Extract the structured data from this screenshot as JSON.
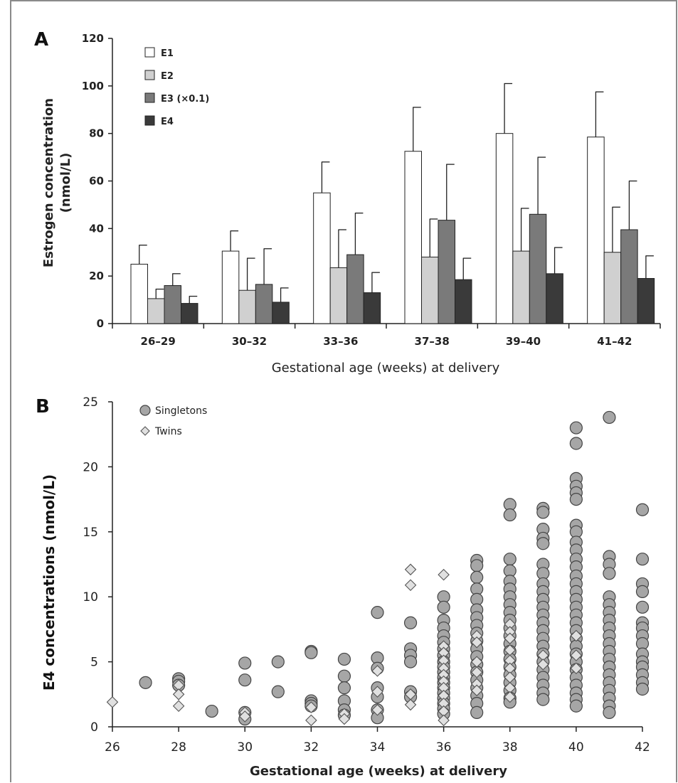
{
  "chart_data": [
    {
      "panel": "A",
      "type": "bar",
      "ylabel_line1": "Estrogen concentration",
      "ylabel_line2": "(nmol/L)",
      "xlabel": "Gestational age (weeks) at delivery",
      "ylim": [
        0,
        120
      ],
      "yticks": [
        0,
        20,
        40,
        60,
        80,
        100,
        120
      ],
      "categories": [
        "26–29",
        "30–32",
        "33–36",
        "37–38",
        "39–40",
        "41–42"
      ],
      "legend_position": "top-left",
      "series": [
        {
          "name": "E1",
          "color": "#ffffff",
          "values": [
            25,
            30.5,
            55,
            72.5,
            80,
            78.5
          ],
          "errors": [
            8,
            8.5,
            13,
            18.5,
            21,
            19
          ]
        },
        {
          "name": "E2",
          "color": "#d0d0d0",
          "values": [
            10.5,
            14,
            23.5,
            28,
            30.5,
            30
          ],
          "errors": [
            4,
            13.5,
            16,
            16,
            18,
            19
          ]
        },
        {
          "name": "E3 (×0.1)",
          "color": "#7a7a7a",
          "values": [
            16,
            16.5,
            29,
            43.5,
            46,
            39.5
          ],
          "errors": [
            5,
            15,
            17.5,
            23.5,
            24,
            20.5
          ]
        },
        {
          "name": "E4",
          "color": "#3a3a3a",
          "values": [
            8.5,
            9,
            13,
            18.5,
            21,
            19
          ],
          "errors": [
            3,
            6,
            8.5,
            9,
            11,
            9.5
          ]
        }
      ]
    },
    {
      "panel": "B",
      "type": "scatter",
      "ylabel": "E4 concentrations (nmol/L)",
      "xlabel": "Gestational age (weeks)  at delivery",
      "xlim": [
        26,
        42
      ],
      "ylim": [
        0,
        25
      ],
      "xticks": [
        26,
        28,
        30,
        32,
        34,
        36,
        38,
        40,
        42
      ],
      "yticks": [
        0,
        5,
        10,
        15,
        20,
        25
      ],
      "legend_position": "top-left",
      "series": [
        {
          "name": "Singletons",
          "marker": "circle",
          "color": "#a6a6a6",
          "points": [
            [
              27,
              3.4
            ],
            [
              28,
              3.7
            ],
            [
              28,
              3.5
            ],
            [
              28,
              3.2
            ],
            [
              29,
              1.2
            ],
            [
              30,
              4.9
            ],
            [
              30,
              3.6
            ],
            [
              30,
              1.1
            ],
            [
              30,
              0.6
            ],
            [
              31,
              5.0
            ],
            [
              31,
              2.7
            ],
            [
              32,
              5.8
            ],
            [
              32,
              5.7
            ],
            [
              32,
              2.0
            ],
            [
              32,
              1.8
            ],
            [
              32,
              1.6
            ],
            [
              33,
              5.2
            ],
            [
              33,
              3.9
            ],
            [
              33,
              3.0
            ],
            [
              33,
              2.0
            ],
            [
              33,
              1.3
            ],
            [
              33,
              0.9
            ],
            [
              34,
              8.8
            ],
            [
              34,
              5.3
            ],
            [
              34,
              4.5
            ],
            [
              34,
              3.0
            ],
            [
              34,
              2.3
            ],
            [
              34,
              1.3
            ],
            [
              34,
              0.7
            ],
            [
              35,
              8.0
            ],
            [
              35,
              6.0
            ],
            [
              35,
              5.5
            ],
            [
              35,
              5.0
            ],
            [
              35,
              2.7
            ],
            [
              35,
              2.3
            ],
            [
              36,
              10.0
            ],
            [
              36,
              9.2
            ],
            [
              36,
              8.2
            ],
            [
              36,
              7.6
            ],
            [
              36,
              7.0
            ],
            [
              36,
              6.5
            ],
            [
              36,
              6.0
            ],
            [
              36,
              5.5
            ],
            [
              36,
              5.0
            ],
            [
              36,
              4.6
            ],
            [
              36,
              4.2
            ],
            [
              36,
              3.8
            ],
            [
              36,
              3.4
            ],
            [
              36,
              3.0
            ],
            [
              36,
              2.6
            ],
            [
              36,
              2.2
            ],
            [
              36,
              1.8
            ],
            [
              36,
              1.4
            ],
            [
              36,
              1.0
            ],
            [
              37,
              12.8
            ],
            [
              37,
              12.4
            ],
            [
              37,
              11.5
            ],
            [
              37,
              10.6
            ],
            [
              37,
              9.8
            ],
            [
              37,
              9.0
            ],
            [
              37,
              8.4
            ],
            [
              37,
              7.8
            ],
            [
              37,
              7.2
            ],
            [
              37,
              6.6
            ],
            [
              37,
              6.0
            ],
            [
              37,
              5.4
            ],
            [
              37,
              4.8
            ],
            [
              37,
              4.2
            ],
            [
              37,
              3.6
            ],
            [
              37,
              3.0
            ],
            [
              37,
              2.4
            ],
            [
              37,
              1.8
            ],
            [
              37,
              1.1
            ],
            [
              38,
              17.1
            ],
            [
              38,
              16.3
            ],
            [
              38,
              12.9
            ],
            [
              38,
              12.0
            ],
            [
              38,
              11.2
            ],
            [
              38,
              10.6
            ],
            [
              38,
              10.0
            ],
            [
              38,
              9.4
            ],
            [
              38,
              8.8
            ],
            [
              38,
              8.2
            ],
            [
              38,
              7.6
            ],
            [
              38,
              7.0
            ],
            [
              38,
              6.4
            ],
            [
              38,
              5.8
            ],
            [
              38,
              5.2
            ],
            [
              38,
              4.6
            ],
            [
              38,
              4.0
            ],
            [
              38,
              3.4
            ],
            [
              38,
              2.8
            ],
            [
              38,
              2.2
            ],
            [
              38,
              1.9
            ],
            [
              39,
              16.8
            ],
            [
              39,
              16.5
            ],
            [
              39,
              15.2
            ],
            [
              39,
              14.5
            ],
            [
              39,
              14.1
            ],
            [
              39,
              12.5
            ],
            [
              39,
              11.8
            ],
            [
              39,
              11.0
            ],
            [
              39,
              10.4
            ],
            [
              39,
              9.8
            ],
            [
              39,
              9.2
            ],
            [
              39,
              8.6
            ],
            [
              39,
              8.0
            ],
            [
              39,
              7.4
            ],
            [
              39,
              6.8
            ],
            [
              39,
              6.2
            ],
            [
              39,
              5.6
            ],
            [
              39,
              5.0
            ],
            [
              39,
              4.4
            ],
            [
              39,
              3.8
            ],
            [
              39,
              3.2
            ],
            [
              39,
              2.6
            ],
            [
              39,
              2.1
            ],
            [
              40,
              23.0
            ],
            [
              40,
              21.8
            ],
            [
              40,
              19.1
            ],
            [
              40,
              18.5
            ],
            [
              40,
              18.0
            ],
            [
              40,
              17.5
            ],
            [
              40,
              15.5
            ],
            [
              40,
              15.0
            ],
            [
              40,
              14.2
            ],
            [
              40,
              13.6
            ],
            [
              40,
              12.9
            ],
            [
              40,
              12.3
            ],
            [
              40,
              11.6
            ],
            [
              40,
              11.0
            ],
            [
              40,
              10.4
            ],
            [
              40,
              9.8
            ],
            [
              40,
              9.2
            ],
            [
              40,
              8.6
            ],
            [
              40,
              8.0
            ],
            [
              40,
              7.4
            ],
            [
              40,
              6.8
            ],
            [
              40,
              6.2
            ],
            [
              40,
              5.6
            ],
            [
              40,
              5.0
            ],
            [
              40,
              4.4
            ],
            [
              40,
              3.8
            ],
            [
              40,
              3.2
            ],
            [
              40,
              2.6
            ],
            [
              40,
              2.1
            ],
            [
              40,
              1.6
            ],
            [
              41,
              23.8
            ],
            [
              41,
              13.1
            ],
            [
              41,
              12.5
            ],
            [
              41,
              11.8
            ],
            [
              41,
              10.0
            ],
            [
              41,
              9.4
            ],
            [
              41,
              8.8
            ],
            [
              41,
              8.2
            ],
            [
              41,
              7.6
            ],
            [
              41,
              7.0
            ],
            [
              41,
              6.4
            ],
            [
              41,
              5.8
            ],
            [
              41,
              5.2
            ],
            [
              41,
              4.6
            ],
            [
              41,
              4.0
            ],
            [
              41,
              3.4
            ],
            [
              41,
              2.8
            ],
            [
              41,
              2.2
            ],
            [
              41,
              1.6
            ],
            [
              41,
              1.1
            ],
            [
              42,
              16.7
            ],
            [
              42,
              12.9
            ],
            [
              42,
              11.0
            ],
            [
              42,
              10.4
            ],
            [
              42,
              9.2
            ],
            [
              42,
              8.0
            ],
            [
              42,
              7.6
            ],
            [
              42,
              7.0
            ],
            [
              42,
              6.4
            ],
            [
              42,
              5.6
            ],
            [
              42,
              5.0
            ],
            [
              42,
              4.6
            ],
            [
              42,
              4.0
            ],
            [
              42,
              3.4
            ],
            [
              42,
              2.9
            ]
          ]
        },
        {
          "name": "Twins",
          "marker": "diamond",
          "color": "#e0e0e0",
          "points": [
            [
              26,
              1.9
            ],
            [
              28,
              3.2
            ],
            [
              28,
              2.5
            ],
            [
              28,
              1.6
            ],
            [
              30,
              1.1
            ],
            [
              30,
              0.8
            ],
            [
              32,
              1.5
            ],
            [
              32,
              0.5
            ],
            [
              33,
              1.0
            ],
            [
              33,
              0.6
            ],
            [
              34,
              4.3
            ],
            [
              34,
              2.7
            ],
            [
              34,
              1.3
            ],
            [
              35,
              12.1
            ],
            [
              35,
              10.9
            ],
            [
              35,
              2.5
            ],
            [
              35,
              1.7
            ],
            [
              36,
              11.7
            ],
            [
              36,
              6.2
            ],
            [
              36,
              5.7
            ],
            [
              36,
              5.1
            ],
            [
              36,
              4.5
            ],
            [
              36,
              4.0
            ],
            [
              36,
              3.5
            ],
            [
              36,
              3.0
            ],
            [
              36,
              2.4
            ],
            [
              36,
              1.8
            ],
            [
              36,
              1.2
            ],
            [
              36,
              0.5
            ],
            [
              37,
              7.0
            ],
            [
              37,
              6.5
            ],
            [
              37,
              5.0
            ],
            [
              37,
              4.2
            ],
            [
              37,
              3.3
            ],
            [
              37,
              2.8
            ],
            [
              38,
              7.9
            ],
            [
              38,
              7.3
            ],
            [
              38,
              6.8
            ],
            [
              38,
              5.9
            ],
            [
              38,
              5.1
            ],
            [
              38,
              4.5
            ],
            [
              38,
              3.8
            ],
            [
              38,
              3.0
            ],
            [
              38,
              2.3
            ],
            [
              39,
              5.5
            ],
            [
              39,
              4.8
            ],
            [
              40,
              7.0
            ],
            [
              40,
              5.5
            ],
            [
              40,
              4.5
            ]
          ]
        }
      ]
    }
  ]
}
